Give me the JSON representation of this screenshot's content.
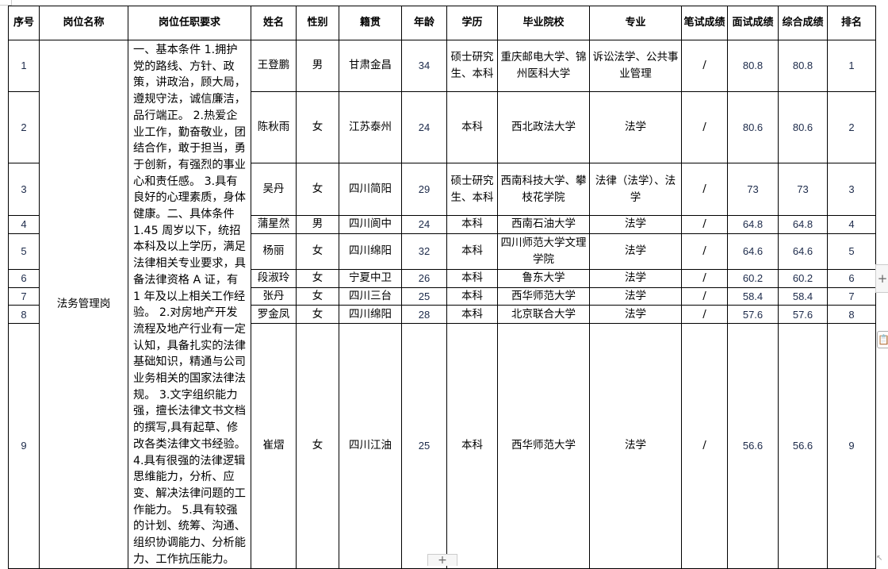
{
  "headers": [
    "序号",
    "岗位名称",
    "岗位任职要求",
    "姓名",
    "性别",
    "籍贯",
    "年龄",
    "学历",
    "毕业院校",
    "专业",
    "笔试成绩",
    "面试成绩",
    "综合成绩",
    "排名"
  ],
  "position": "法务管理岗",
  "requirements": "一、基本条件 1.拥护党的路线、方针、政策，讲政治，顾大局，遵规守法，诚信廉洁，品行端正。 2.热爱企业工作，勤奋敬业，团结合作，敢于担当，勇于创新，有强烈的事业心和责任感。 3.具有良好的心理素质，身体健康。二、具体条件 1.45 周岁以下，统招本科及以上学历，满足法律相关专业要求，具备法律资格 A 证，有 1 年及以上相关工作经验。 2.对房地产开发流程及地产行业有一定认知，具备扎实的法律基础知识，精通与公司业务相关的国家法律法规。 3.文字组织能力强，擅长法律文书文档的撰写,具有起草、修改各类法律文书经验。 4.具有很强的法律逻辑思维能力，分析、应变、解决法律问题的工作能力。 5.具有较强的计划、统筹、沟通、组织协调能力、分析能力、工作抗压能力。",
  "rows": [
    {
      "no": "1",
      "name": "王登鹏",
      "gender": "男",
      "origin": "甘肃金昌",
      "age": "34",
      "edu": "硕士研究生、本科",
      "school": "重庆邮电大学、锦州医科大学",
      "major": "诉讼法学、公共事业管理",
      "written": "/",
      "interview": "80.8",
      "total": "80.8",
      "rank": "1"
    },
    {
      "no": "2",
      "name": "陈秋雨",
      "gender": "女",
      "origin": "江苏泰州",
      "age": "24",
      "edu": "本科",
      "school": "西北政法大学",
      "major": "法学",
      "written": "/",
      "interview": "80.6",
      "total": "80.6",
      "rank": "2"
    },
    {
      "no": "3",
      "name": "吴丹",
      "gender": "女",
      "origin": "四川简阳",
      "age": "29",
      "edu": "硕士研究生、本科",
      "school": "西南科技大学、攀枝花学院",
      "major": "法律（法学）、法学",
      "written": "/",
      "interview": "73",
      "total": "73",
      "rank": "3"
    },
    {
      "no": "4",
      "name": "蒲星然",
      "gender": "男",
      "origin": "四川阆中",
      "age": "24",
      "edu": "本科",
      "school": "西南石油大学",
      "major": "法学",
      "written": "/",
      "interview": "64.8",
      "total": "64.8",
      "rank": "4"
    },
    {
      "no": "5",
      "name": "杨丽",
      "gender": "女",
      "origin": "四川绵阳",
      "age": "32",
      "edu": "本科",
      "school": "四川师范大学文理学院",
      "major": "法学",
      "written": "/",
      "interview": "64.6",
      "total": "64.6",
      "rank": "5"
    },
    {
      "no": "6",
      "name": "段淑玲",
      "gender": "女",
      "origin": "宁夏中卫",
      "age": "26",
      "edu": "本科",
      "school": "鲁东大学",
      "major": "法学",
      "written": "/",
      "interview": "60.2",
      "total": "60.2",
      "rank": "6"
    },
    {
      "no": "7",
      "name": "张丹",
      "gender": "女",
      "origin": "四川三台",
      "age": "25",
      "edu": "本科",
      "school": "西华师范大学",
      "major": "法学",
      "written": "/",
      "interview": "58.4",
      "total": "58.4",
      "rank": "7"
    },
    {
      "no": "8",
      "name": "罗金凤",
      "gender": "女",
      "origin": "四川绵阳",
      "age": "28",
      "edu": "本科",
      "school": "北京联合大学",
      "major": "法学",
      "written": "/",
      "interview": "57.6",
      "total": "57.6",
      "rank": "8"
    },
    {
      "no": "9",
      "name": "崔熠",
      "gender": "女",
      "origin": "四川江油",
      "age": "25",
      "edu": "本科",
      "school": "西华师范大学",
      "major": "法学",
      "written": "/",
      "interview": "56.6",
      "total": "56.6",
      "rank": "9"
    }
  ],
  "controls": {
    "add_row": "+",
    "add_col": "+",
    "paste_icon": "clipboard-icon"
  }
}
